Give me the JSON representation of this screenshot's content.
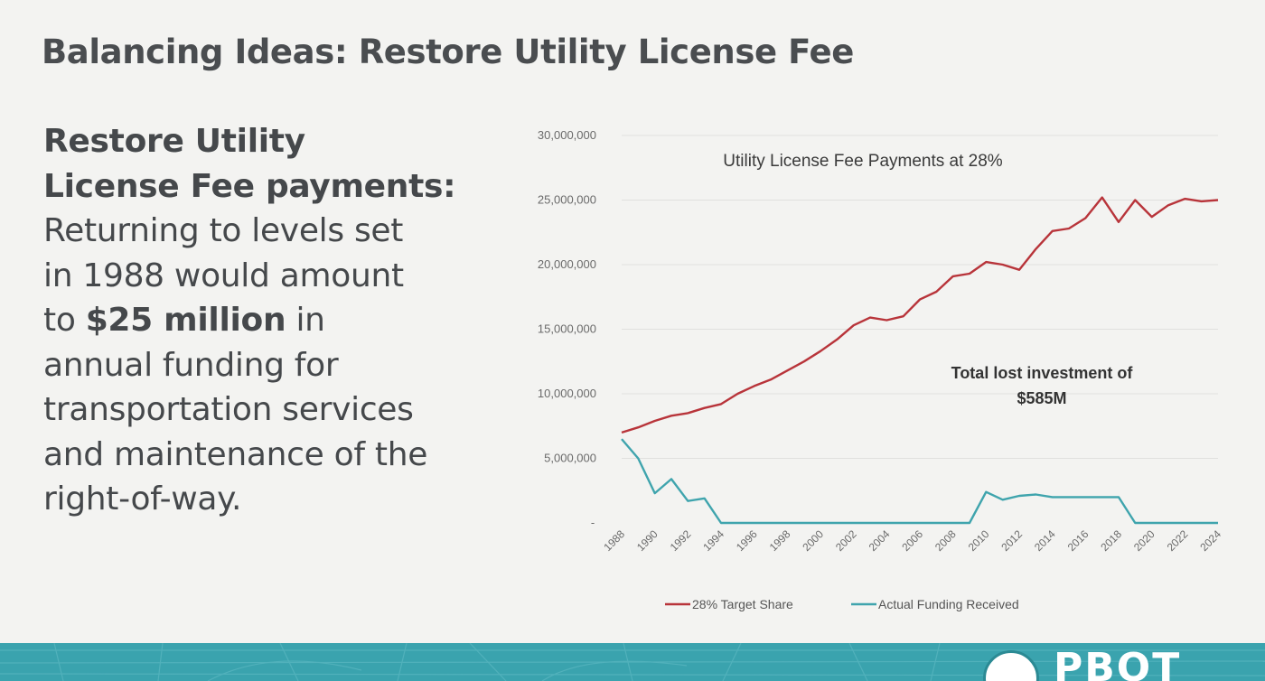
{
  "slide": {
    "title": "Balancing Ideas: Restore Utility License Fee",
    "heading_line1": "Restore Utility",
    "heading_line2": "License Fee payments:",
    "body_line1": "Returning to levels set",
    "body_line2": "in 1988 would amount",
    "body_line3_prefix": "to ",
    "body_line3_bold": "$25 million",
    "body_line3_suffix": " in",
    "body_line4": "annual funding for",
    "body_line5": "transportation services",
    "body_line6": "and maintenance of the",
    "body_line7": "right-of-way."
  },
  "footer": {
    "brand": "PBOT",
    "color": "#3aa3ae"
  },
  "chart_data": {
    "type": "line",
    "title": "Utility License Fee Payments at 28%",
    "annotation_line1": "Total lost investment of",
    "annotation_line2": "$585M",
    "x": [
      1988,
      1989,
      1990,
      1991,
      1992,
      1993,
      1994,
      1995,
      1996,
      1997,
      1998,
      1999,
      2000,
      2001,
      2002,
      2003,
      2004,
      2005,
      2006,
      2007,
      2008,
      2009,
      2010,
      2011,
      2012,
      2013,
      2014,
      2015,
      2016,
      2017,
      2018,
      2019,
      2020,
      2021,
      2022,
      2023,
      2024
    ],
    "x_tick_labels": [
      "1988",
      "1990",
      "1992",
      "1994",
      "1996",
      "1998",
      "2000",
      "2002",
      "2004",
      "2006",
      "2008",
      "2010",
      "2012",
      "2014",
      "2016",
      "2018",
      "2020",
      "2022",
      "2024"
    ],
    "y_tick_labels": [
      "30,000,000",
      "25,000,000",
      "20,000,000",
      "15,000,000",
      "10,000,000",
      "5,000,000",
      "-"
    ],
    "ylim": [
      0,
      30000000
    ],
    "grid": true,
    "legend_position": "bottom",
    "series": [
      {
        "name": "28% Target Share",
        "color": "#b8343a",
        "values": [
          7000000,
          7400000,
          7900000,
          8300000,
          8500000,
          8900000,
          9200000,
          10000000,
          10600000,
          11100000,
          11800000,
          12500000,
          13300000,
          14200000,
          15300000,
          15900000,
          15700000,
          16000000,
          17300000,
          17900000,
          19100000,
          19300000,
          20200000,
          20000000,
          19600000,
          21200000,
          22600000,
          22800000,
          23600000,
          25200000,
          23300000,
          25000000,
          23700000,
          24600000,
          25100000,
          24900000,
          25000000
        ]
      },
      {
        "name": "Actual Funding Received",
        "color": "#3fa4ad",
        "values": [
          6500000,
          5000000,
          2300000,
          3400000,
          1700000,
          1900000,
          0,
          0,
          0,
          0,
          0,
          0,
          0,
          0,
          0,
          0,
          0,
          0,
          0,
          0,
          0,
          0,
          2400000,
          1800000,
          2100000,
          2200000,
          2000000,
          2000000,
          2000000,
          2000000,
          2000000,
          0,
          0,
          0,
          0,
          0,
          0
        ]
      }
    ]
  }
}
